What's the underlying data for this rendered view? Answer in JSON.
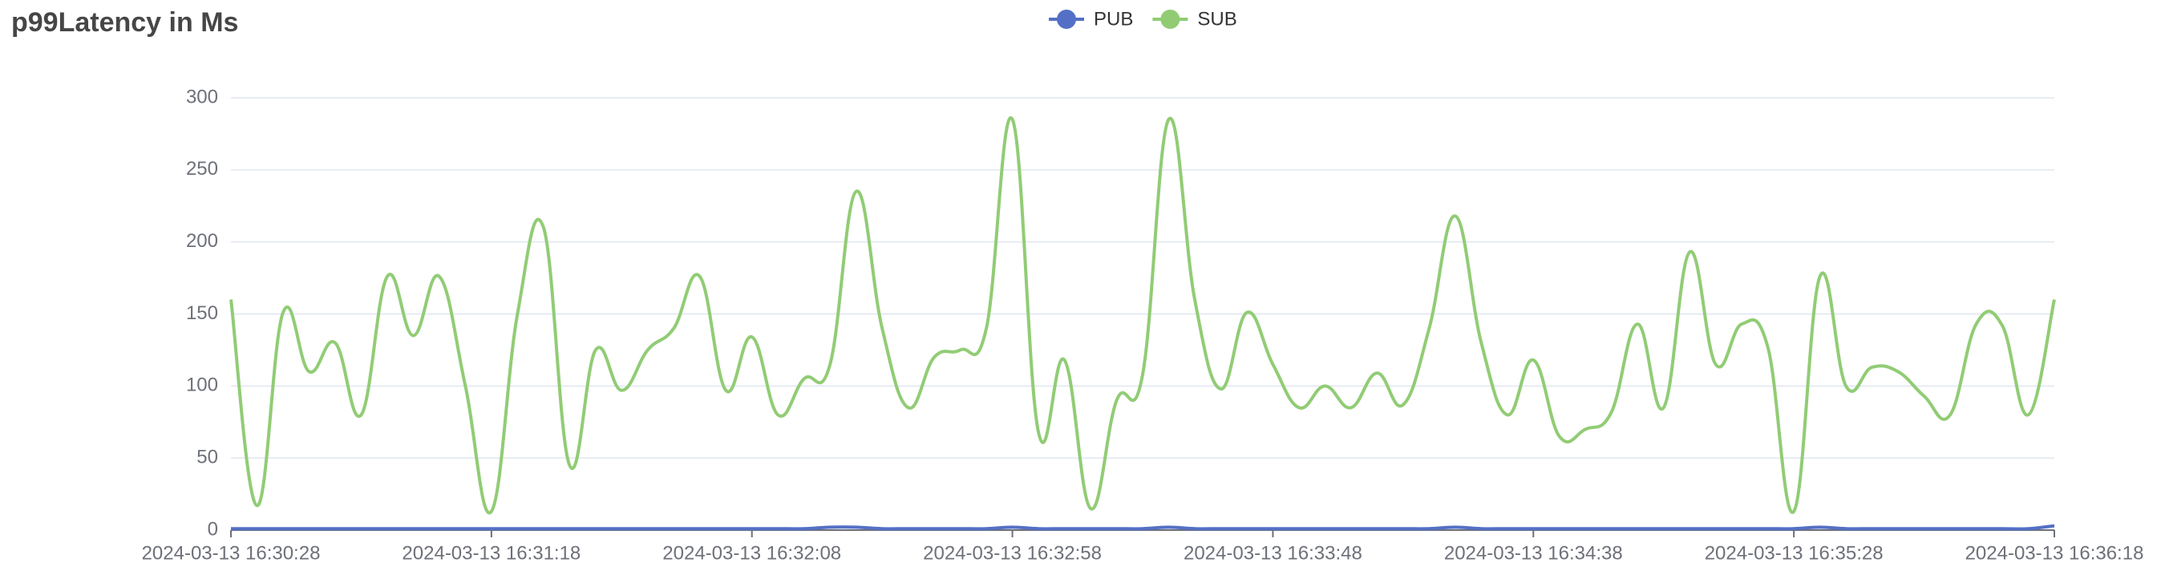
{
  "chart_data": {
    "type": "line",
    "title": "p99Latency in Ms",
    "categories": [
      "2024-03-13 16:30:28",
      null,
      null,
      null,
      null,
      null,
      null,
      null,
      null,
      null,
      "2024-03-13 16:31:18",
      null,
      null,
      null,
      null,
      null,
      null,
      null,
      null,
      null,
      "2024-03-13 16:32:08",
      null,
      null,
      null,
      null,
      null,
      null,
      null,
      null,
      null,
      "2024-03-13 16:32:58",
      null,
      null,
      null,
      null,
      null,
      null,
      null,
      null,
      null,
      "2024-03-13 16:33:48",
      null,
      null,
      null,
      null,
      null,
      null,
      null,
      null,
      null,
      "2024-03-13 16:34:38",
      null,
      null,
      null,
      null,
      null,
      null,
      null,
      null,
      null,
      "2024-03-13 16:35:28",
      null,
      null,
      null,
      null,
      null,
      null,
      null,
      null,
      null,
      "2024-03-13 16:36:18"
    ],
    "series": [
      {
        "name": "PUB",
        "color": "#5470c6",
        "values": [
          1,
          1,
          1,
          1,
          1,
          1,
          1,
          1,
          1,
          1,
          1,
          1,
          1,
          1,
          1,
          1,
          1,
          1,
          1,
          1,
          1,
          1,
          1,
          2,
          2,
          1,
          1,
          1,
          1,
          1,
          2,
          1,
          1,
          1,
          1,
          1,
          2,
          1,
          1,
          1,
          1,
          1,
          1,
          1,
          1,
          1,
          1,
          2,
          1,
          1,
          1,
          1,
          1,
          1,
          1,
          1,
          1,
          1,
          1,
          1,
          1,
          2,
          1,
          1,
          1,
          1,
          1,
          1,
          1,
          1,
          3
        ]
      },
      {
        "name": "SUB",
        "color": "#91cc75",
        "values": [
          160,
          17,
          151,
          110,
          130,
          80,
          176,
          135,
          176,
          100,
          13,
          150,
          210,
          45,
          125,
          97,
          125,
          140,
          176,
          97,
          134,
          80,
          105,
          115,
          235,
          140,
          85,
          120,
          125,
          140,
          285,
          68,
          118,
          15,
          90,
          108,
          285,
          160,
          98,
          151,
          115,
          85,
          100,
          85,
          109,
          87,
          140,
          218,
          130,
          80,
          118,
          65,
          70,
          82,
          143,
          85,
          193,
          115,
          143,
          127,
          13,
          176,
          100,
          113,
          110,
          93,
          80,
          143,
          142,
          80,
          160
        ]
      }
    ],
    "ylim": [
      0,
      300
    ],
    "yticks": [
      0,
      50,
      100,
      150,
      200,
      250,
      300
    ],
    "grid": true
  }
}
